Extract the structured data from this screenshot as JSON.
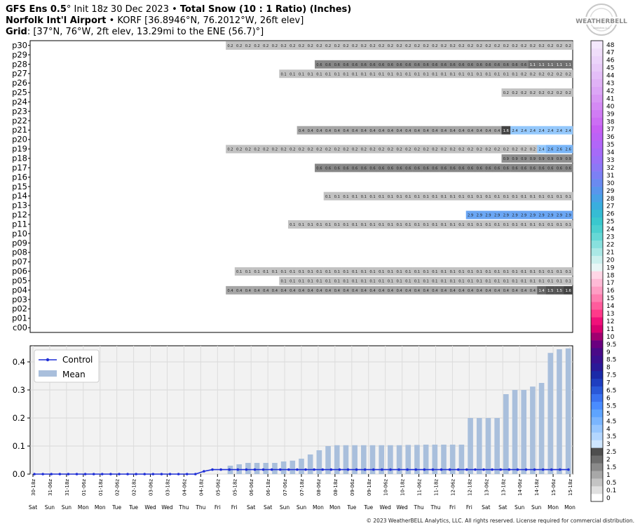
{
  "header": {
    "line1_a": "GFS Ens 0.5",
    "line1_b": "° Init 18z 30 Dec 2023 • ",
    "line1_c": "Total Snow (10 : 1 Ratio) (Inches)",
    "line2_a": "Norfolk Int'l Airport",
    "line2_b": " • KORF [36.8946°N, 76.2012°W, 26ft elev]",
    "line3_a": "Grid",
    "line3_b": ": [37°N, 76°W, 2ft elev, 13.29mi to the ENE (56.7)°]"
  },
  "logo": {
    "text": "WEATHERBELL",
    "sub": "Analytics LLC"
  },
  "copyright": "© 2023 WeatherBELL Analytics, LLC. All rights reserved. License required for commercial distribution.",
  "chart_data": [
    {
      "type": "heatmap",
      "title": "Ensemble member totals",
      "members": [
        "p30",
        "p29",
        "p28",
        "p27",
        "p26",
        "p25",
        "p24",
        "p23",
        "p22",
        "p21",
        "p20",
        "p19",
        "p18",
        "p17",
        "p16",
        "p15",
        "p14",
        "p13",
        "p12",
        "p11",
        "p10",
        "p09",
        "p08",
        "p07",
        "p06",
        "p05",
        "p04",
        "p03",
        "p02",
        "p01",
        "c00"
      ],
      "cell_count": 61,
      "rows": {
        "p30": [
          {
            "start": 22,
            "segments": [
              [
                "0.2",
                39
              ]
            ]
          }
        ],
        "p28": [
          {
            "start": 32,
            "segments": [
              [
                "0.6",
                24
              ],
              [
                "1.1",
                5
              ]
            ]
          }
        ],
        "p27": [
          {
            "start": 28,
            "segments": [
              [
                "0.1",
                27
              ],
              [
                "0.2",
                6
              ]
            ]
          }
        ],
        "p25": [
          {
            "start": 53,
            "segments": [
              [
                "0.2",
                8
              ]
            ]
          }
        ],
        "p21": [
          {
            "start": 30,
            "segments": [
              [
                "0.4",
                23
              ],
              [
                "1.6",
                1
              ],
              [
                "2.4",
                7
              ]
            ]
          }
        ],
        "p19": [
          {
            "start": 22,
            "segments": [
              [
                "0.2",
                35
              ],
              [
                "2.4",
                1
              ],
              [
                "2.6",
                3
              ]
            ]
          }
        ],
        "p18": [
          {
            "start": 53,
            "segments": [
              [
                "0.9",
                8
              ]
            ]
          }
        ],
        "p17": [
          {
            "start": 32,
            "segments": [
              [
                "0.6",
                29
              ]
            ]
          }
        ],
        "p14": [
          {
            "start": 33,
            "segments": [
              [
                "0.1",
                28
              ]
            ]
          }
        ],
        "p12": [
          {
            "start": 49,
            "segments": [
              [
                "2.9",
                12
              ]
            ]
          }
        ],
        "p11": [
          {
            "start": 29,
            "segments": [
              [
                "0.1",
                32
              ]
            ]
          }
        ],
        "p06": [
          {
            "start": 23,
            "segments": [
              [
                "0.1",
                38
              ]
            ]
          }
        ],
        "p05": [
          {
            "start": 28,
            "segments": [
              [
                "0.1",
                33
              ]
            ]
          }
        ],
        "p04": [
          {
            "start": 22,
            "segments": [
              [
                "0.4",
                35
              ],
              [
                "1.4",
                1
              ],
              [
                "1.5",
                2
              ],
              [
                "1.6",
                1
              ]
            ]
          }
        ]
      }
    },
    {
      "type": "bar",
      "title": "",
      "legend": [
        "Control",
        "Mean"
      ],
      "legend_placement": "top-left",
      "grid": true,
      "ylim": [
        0,
        0.45
      ],
      "yticks": [
        "0.0",
        "0.1",
        "0.2",
        "0.3",
        "0.4"
      ],
      "x_ticks": [
        "30-18z",
        "31-06z",
        "31-18z",
        "01-06z",
        "01-18z",
        "02-06z",
        "02-18z",
        "03-06z",
        "03-18z",
        "04-06z",
        "04-18z",
        "05-06z",
        "05-18z",
        "06-06z",
        "06-18z",
        "07-06z",
        "07-18z",
        "08-06z",
        "08-18z",
        "09-06z",
        "09-18z",
        "10-06z",
        "10-18z",
        "11-06z",
        "11-18z",
        "12-06z",
        "12-18z",
        "13-06z",
        "13-18z",
        "14-06z",
        "14-18z",
        "15-06z",
        "15-18z"
      ],
      "day_labels": [
        "Sat",
        "Sun",
        "Sun",
        "Mon",
        "Mon",
        "Tue",
        "Tue",
        "Wed",
        "Wed",
        "Thu",
        "Thu",
        "Fri",
        "Fri",
        "Sat",
        "Sat",
        "Sun",
        "Sun",
        "Mon",
        "Mon",
        "Tue",
        "Tue",
        "Wed",
        "Wed",
        "Thu",
        "Thu",
        "Fri",
        "Fri",
        "Sat",
        "Sat",
        "Sun",
        "Sun",
        "Mon",
        "Mon"
      ],
      "mean": [
        0,
        0,
        0,
        0,
        0,
        0,
        0,
        0,
        0,
        0,
        0,
        0,
        0,
        0,
        0,
        0,
        0,
        0,
        0,
        0,
        0,
        0,
        0.03,
        0.035,
        0.04,
        0.04,
        0.04,
        0.04,
        0.045,
        0.048,
        0.055,
        0.07,
        0.085,
        0.1,
        0.103,
        0.103,
        0.103,
        0.103,
        0.103,
        0.103,
        0.103,
        0.103,
        0.104,
        0.104,
        0.105,
        0.105,
        0.105,
        0.105,
        0.105,
        0.2,
        0.2,
        0.2,
        0.2,
        0.285,
        0.3,
        0.3,
        0.312,
        0.325,
        0.432,
        0.445,
        0.448
      ],
      "control": [
        0,
        0,
        0,
        0,
        0,
        0,
        0,
        0,
        0,
        0,
        0,
        0,
        0,
        0,
        0,
        0,
        0,
        0,
        0,
        0,
        0.01,
        0.016,
        0.016,
        0.016,
        0.016,
        0.016,
        0.016,
        0.016,
        0.016,
        0.016,
        0.016,
        0.016,
        0.016,
        0.016,
        0.016,
        0.016,
        0.016,
        0.016,
        0.016,
        0.016,
        0.016,
        0.016,
        0.016,
        0.016,
        0.016,
        0.016,
        0.016,
        0.016,
        0.016,
        0.016,
        0.016,
        0.016,
        0.016,
        0.016,
        0.016,
        0.016,
        0.016,
        0.016,
        0.016,
        0.016,
        0.016,
        0.016,
        0.016,
        0.016
      ]
    }
  ],
  "colorbar": {
    "labels": [
      "0",
      "0.1",
      "0.5",
      "1",
      "1.5",
      "2",
      "2.5",
      "3",
      "3.5",
      "4",
      "4.5",
      "5",
      "5.5",
      "6",
      "6.5",
      "7",
      "7.5",
      "8",
      "8.5",
      "9",
      "9.5",
      "10",
      "11",
      "12",
      "13",
      "14",
      "15",
      "16",
      "17",
      "18",
      "19",
      "20",
      "21",
      "22",
      "23",
      "24",
      "25",
      "26",
      "27",
      "28",
      "29",
      "30",
      "31",
      "32",
      "33",
      "34",
      "35",
      "36",
      "37",
      "38",
      "39",
      "40",
      "41",
      "42",
      "43",
      "44",
      "45",
      "46",
      "47",
      "48"
    ],
    "colors": [
      "#ffffff",
      "#e0e0e0",
      "#c4c4c4",
      "#a8a8a8",
      "#8a8a8a",
      "#6c6c6c",
      "#4e4e4e",
      "#cfe6ff",
      "#b3d6ff",
      "#97c6ff",
      "#7ab5ff",
      "#5ea4ff",
      "#4a8cff",
      "#3a72f0",
      "#2a58d8",
      "#1f3ec0",
      "#1a2aa8",
      "#2a1a98",
      "#3a1090",
      "#4a0a88",
      "#6a0080",
      "#a00070",
      "#d80070",
      "#f0107a",
      "#ff3a8a",
      "#ff5c9c",
      "#ff7eb0",
      "#ff9ec4",
      "#ffbad6",
      "#ffd6e6",
      "#e8f6f6",
      "#ccf0ee",
      "#aae8e6",
      "#88e0de",
      "#66d8d6",
      "#4cd0d0",
      "#3ac8ce",
      "#36bcd4",
      "#3aaede",
      "#48a2e6",
      "#5896ec",
      "#6a8af0",
      "#7c80f4",
      "#8c78f6",
      "#9a70f8",
      "#a66af8",
      "#b266f8",
      "#bc62f6",
      "#c660f4",
      "#cc6ef4",
      "#d07cf4",
      "#d48af4",
      "#d898f4",
      "#dca6f6",
      "#e0b2f6",
      "#e4bef8",
      "#e8caf8",
      "#ecd4fa",
      "#f0defa",
      "#f4e8fc"
    ]
  }
}
